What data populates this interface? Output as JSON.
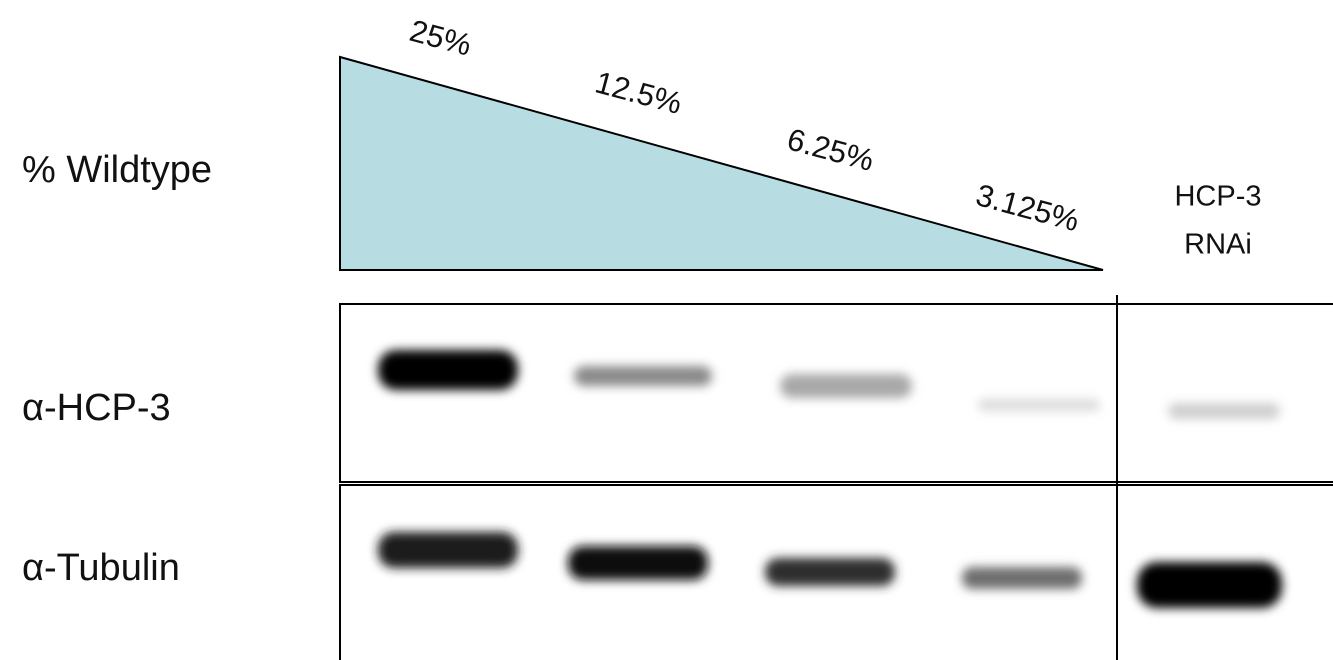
{
  "row_labels": {
    "wildtype": "% Wildtype",
    "hcp3": "α-HCP-3",
    "tubulin": "α-Tubulin"
  },
  "dilutions": [
    "25%",
    "12.5%",
    "6.25%",
    "3.125%"
  ],
  "rnai_lane": [
    "HCP-3",
    "RNAi"
  ]
}
